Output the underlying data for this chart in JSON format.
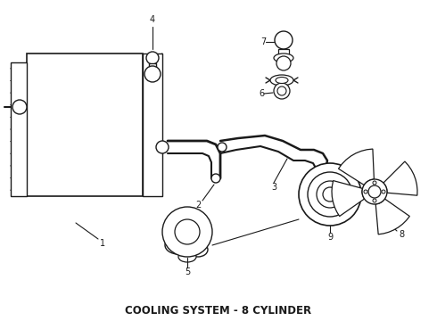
{
  "title": "COOLING SYSTEM - 8 CYLINDER",
  "title_fontsize": 8.5,
  "title_fontweight": "bold",
  "bg_color": "#ffffff",
  "fig_width": 4.9,
  "fig_height": 3.6,
  "dpi": 100,
  "line_color": "#1a1a1a",
  "line_width": 1.0
}
